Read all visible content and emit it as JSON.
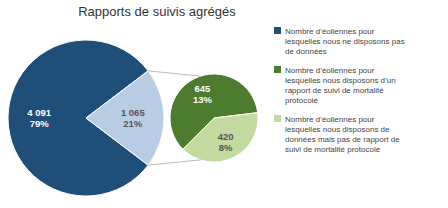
{
  "chart_data": [
    {
      "type": "pie",
      "title": "Rapports de suivis agrégés",
      "categories": [
        "Nombre d’éoliennes pour\nlesquelles nous ne disposons pas\nde données",
        null
      ],
      "values": [
        4091,
        1065
      ],
      "value_labels": [
        "4 091\n79%",
        "1 065\n21%"
      ],
      "colors": [
        "#1f4e79",
        "#b8cce4"
      ],
      "data_labels": true,
      "legend": "right"
    },
    {
      "type": "pie",
      "categories": [
        "Nombre d’éoliennes pour\nlesquelles nous disposons d’un\nrapport de suivi de mortalité\nprotocolé",
        "Nombre d’éoliennes pour\nlesquelles nous disposons de\ndonnées mais pas de rapport de\nsuivi de mortalité protocolé"
      ],
      "values": [
        645,
        420
      ],
      "value_labels": [
        "645\n13%",
        "420\n8%"
      ],
      "colors": [
        "#4d7c2e",
        "#c2d9a0"
      ],
      "data_labels": true,
      "legend": "right"
    }
  ]
}
